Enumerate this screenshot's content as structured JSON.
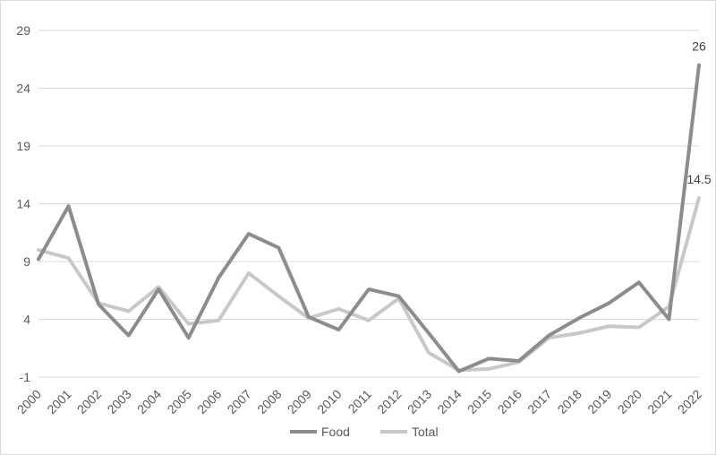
{
  "chart_data": {
    "type": "line",
    "title": "",
    "xlabel": "",
    "ylabel": "",
    "categories": [
      "2000",
      "2001",
      "2002",
      "2003",
      "2004",
      "2005",
      "2006",
      "2007",
      "2008",
      "2009",
      "2010",
      "2011",
      "2012",
      "2013",
      "2014",
      "2015",
      "2016",
      "2017",
      "2018",
      "2019",
      "2020",
      "2021",
      "2022"
    ],
    "ylim": [
      -1,
      29
    ],
    "yticks": [
      -1,
      4,
      9,
      14,
      19,
      24,
      29
    ],
    "grid": true,
    "legend_position": "bottom",
    "series": [
      {
        "name": "Food",
        "color": "#8c8c8c",
        "values": [
          9.2,
          13.8,
          5.3,
          2.6,
          6.6,
          2.4,
          7.6,
          11.4,
          10.2,
          4.2,
          3.1,
          6.6,
          6.0,
          2.8,
          -0.5,
          0.6,
          0.4,
          2.6,
          4.1,
          5.4,
          7.2,
          4.0,
          26.0
        ],
        "labels": {
          "22": "26"
        }
      },
      {
        "name": "Total",
        "color": "#c8c8c8",
        "values": [
          10.0,
          9.3,
          5.4,
          4.7,
          6.8,
          3.6,
          3.9,
          8.0,
          6.0,
          4.1,
          4.9,
          3.9,
          5.8,
          1.1,
          -0.4,
          -0.3,
          0.3,
          2.4,
          2.8,
          3.4,
          3.3,
          5.1,
          14.5
        ],
        "labels": {
          "22": "14.5"
        }
      }
    ]
  }
}
